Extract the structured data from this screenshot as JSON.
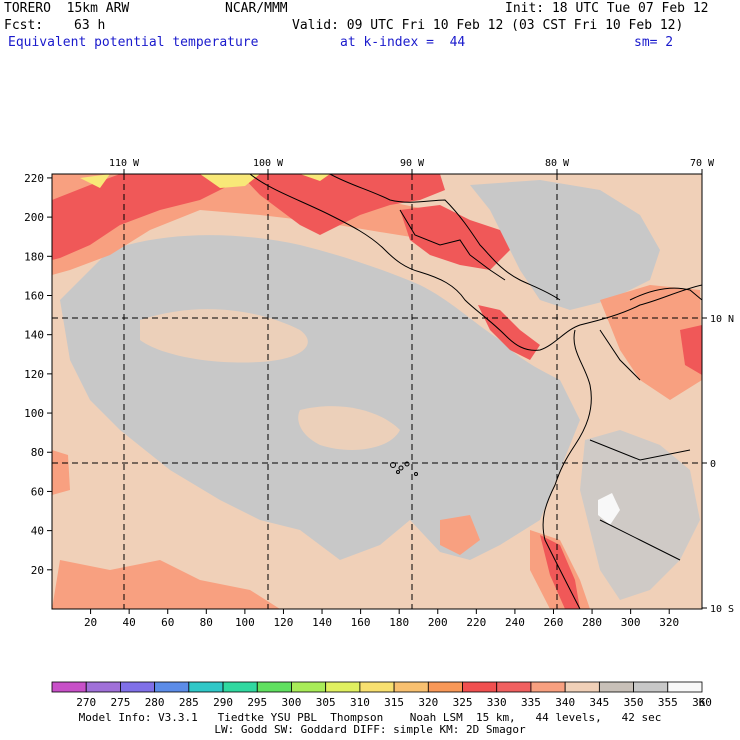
{
  "header": {
    "model": "TORERO  15km ARW",
    "center": "NCAR/MMM",
    "init": "Init: 18 UTC Tue 07 Feb 12",
    "fcst_label": "Fcst:",
    "fcst_hours": "63 h",
    "valid": "Valid: 09 UTC Fri 10 Feb 12 (03 CST Fri 10 Feb 12)",
    "field": "Equivalent potential temperature",
    "level": "at k-index =  44",
    "smooth": "sm= 2"
  },
  "axes": {
    "left_ticks": [
      "220",
      "200",
      "180",
      "160",
      "140",
      "120",
      "100",
      "80",
      "60",
      "40",
      "20"
    ],
    "bottom_ticks": [
      "20",
      "40",
      "60",
      "80",
      "100",
      "120",
      "140",
      "160",
      "180",
      "200",
      "220",
      "240",
      "260",
      "280",
      "300",
      "320"
    ],
    "top_lon": [
      "110 W",
      "100 W",
      "90 W",
      "80 W",
      "70 W"
    ],
    "right_lat": [
      "10 N",
      "0",
      "10 S"
    ]
  },
  "legend": {
    "labels": [
      "270",
      "275",
      "280",
      "285",
      "290",
      "295",
      "300",
      "305",
      "310",
      "315",
      "320",
      "325",
      "330",
      "335",
      "340",
      "345",
      "350",
      "355",
      "360"
    ],
    "unit": "K",
    "colors": [
      "#c850c8",
      "#a070d8",
      "#8070e8",
      "#5c8ce8",
      "#30c8c8",
      "#30d8a0",
      "#60e060",
      "#a8ec58",
      "#e0f060",
      "#f8e070",
      "#f8c070",
      "#f89858",
      "#f05050",
      "#f06060",
      "#f8a080",
      "#f0d0b8",
      "#c8c0b8",
      "#c8c8c8",
      "#f8f8f8"
    ]
  },
  "footer": {
    "line1": "Model Info: V3.3.1   Tiedtke YSU PBL  Thompson    Noah LSM  15 km,   44 levels,   42 sec",
    "line2": "LW: Godd SW: Goddard DIFF: simple KM: 2D Smagor"
  },
  "map_colors": {
    "bg_tan": "#f0d0b8",
    "gray": "#c8c8c8",
    "lightgray": "#cfcac6",
    "salmon": "#f8a080",
    "red": "#f05858",
    "yellow": "#f8e878",
    "white": "#f8f8f8"
  }
}
